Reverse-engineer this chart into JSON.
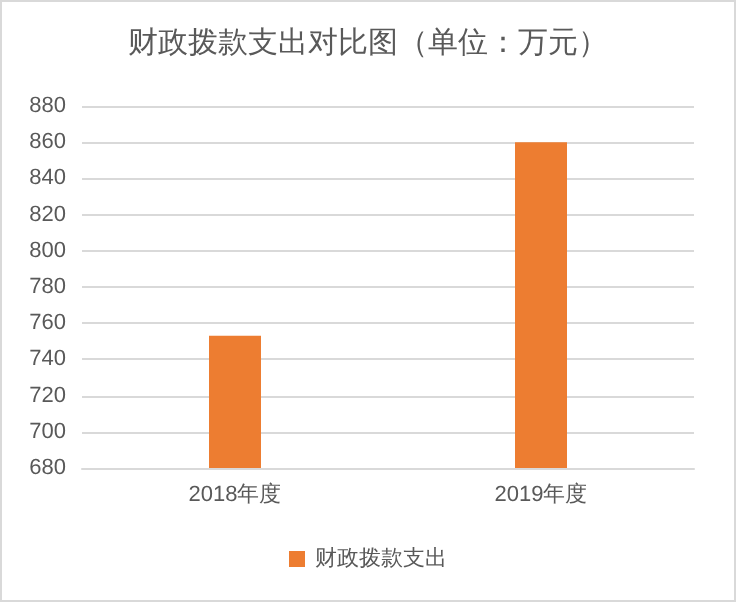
{
  "chart_data": {
    "type": "bar",
    "title": "财政拨款支出对比图（单位：万元）",
    "categories": [
      "2018年度",
      "2019年度"
    ],
    "series": [
      {
        "name": "财政拨款支出",
        "color": "#ed7d31",
        "values": [
          753,
          860
        ]
      }
    ],
    "ylim": [
      680,
      880
    ],
    "yticks": [
      680,
      700,
      720,
      740,
      760,
      780,
      800,
      820,
      840,
      860,
      880
    ],
    "grid": "y",
    "legend": "bottom"
  }
}
